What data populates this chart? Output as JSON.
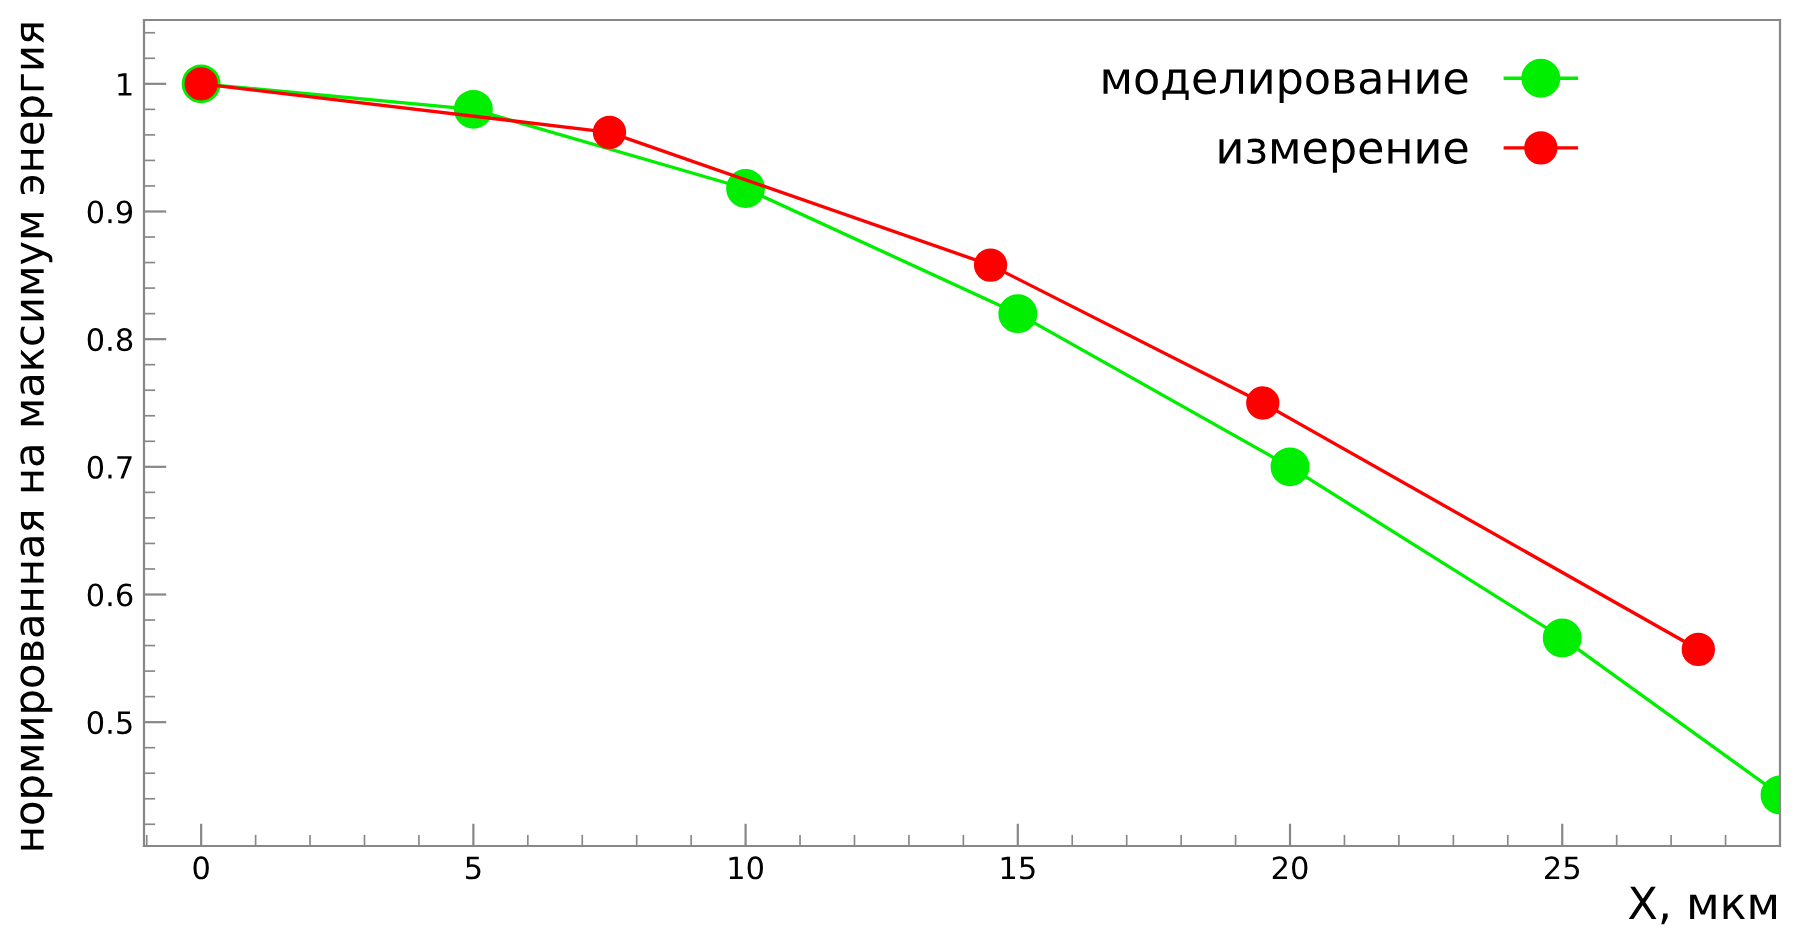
{
  "chart_data": {
    "type": "line",
    "xlabel": "X, мкм",
    "ylabel": "нормированная на максимум энергия",
    "xlim": [
      -1.05,
      29
    ],
    "ylim": [
      0.403,
      1.05
    ],
    "xticks": [
      0,
      5,
      10,
      15,
      20,
      25
    ],
    "yticks": [
      0.5,
      0.6,
      0.7,
      0.8,
      0.9,
      1
    ],
    "marker": "circle",
    "line_style": "solid",
    "grid": false,
    "legend": "top right",
    "series": [
      {
        "name": "моделирование",
        "color": "#00ee00",
        "x": [
          0,
          5,
          10,
          15,
          20,
          25,
          29
        ],
        "values": [
          1,
          0.98,
          0.918,
          0.82,
          0.7,
          0.566,
          0.443
        ]
      },
      {
        "name": "измерение",
        "color": "#ff0000",
        "x": [
          0,
          7.5,
          14.5,
          19.5,
          27.5
        ],
        "values": [
          1,
          0.962,
          0.858,
          0.75,
          0.557
        ]
      }
    ]
  }
}
